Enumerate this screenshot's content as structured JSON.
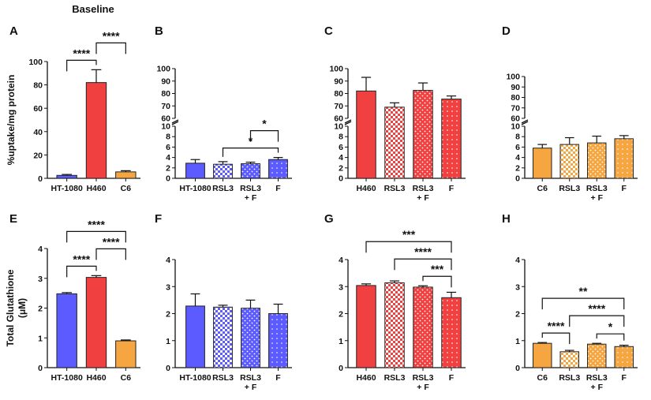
{
  "figure_title": "Baseline",
  "chart_data": [
    {
      "id": "A",
      "type": "bar",
      "panel_label": "A",
      "title": "Baseline",
      "ylabel": "%uptake/mg protein",
      "categories": [
        "HT-1080",
        "H460",
        "C6"
      ],
      "values": [
        2.5,
        82,
        5.5
      ],
      "errors": [
        0.8,
        11,
        1
      ],
      "colors": [
        "#5b5bff",
        "#f04040",
        "#f5a640"
      ],
      "patterns": [
        "solid",
        "solid",
        "solid"
      ],
      "ylim": [
        0,
        100
      ],
      "yticks": [
        0,
        20,
        40,
        60,
        80,
        100
      ],
      "significance": [
        {
          "from": 0,
          "to": 1,
          "label": "****"
        },
        {
          "from": 1,
          "to": 2,
          "label": "****"
        }
      ]
    },
    {
      "id": "B",
      "type": "bar",
      "panel_label": "B",
      "broken_axis": true,
      "categories": [
        "HT-1080",
        "RSL3",
        "RSL3\n+ F",
        "F"
      ],
      "values": [
        2.9,
        2.7,
        2.8,
        3.6
      ],
      "errors": [
        0.7,
        0.5,
        0.3,
        0.4
      ],
      "colors": [
        "#5b5bff",
        "#5b5bff",
        "#5b5bff",
        "#5b5bff"
      ],
      "patterns": [
        "solid",
        "check",
        "dots",
        "dense-dots"
      ],
      "ylim_low": [
        0,
        10
      ],
      "yticks_low": [
        0,
        2,
        4,
        6,
        8,
        10
      ],
      "ylim_high": [
        60,
        100
      ],
      "yticks_high": [
        60,
        70,
        80,
        90,
        100
      ],
      "significance": [
        {
          "from": 1,
          "to": 3,
          "label": "*"
        },
        {
          "from": 2,
          "to": 3,
          "label": "*"
        }
      ]
    },
    {
      "id": "C",
      "type": "bar",
      "panel_label": "C",
      "broken_axis": true,
      "categories": [
        "H460",
        "RSL3",
        "RSL3\n+ F",
        "F"
      ],
      "values": [
        82,
        69,
        82.5,
        75.5
      ],
      "errors": [
        11,
        3.5,
        6,
        2.5
      ],
      "colors": [
        "#f04040",
        "#f04040",
        "#f04040",
        "#f04040"
      ],
      "patterns": [
        "solid",
        "check",
        "dots",
        "dense-dots"
      ],
      "ylim_low": [
        0,
        10
      ],
      "yticks_low": [
        0,
        2,
        4,
        6,
        8,
        10
      ],
      "ylim_high": [
        60,
        100
      ],
      "yticks_high": [
        60,
        70,
        80,
        90,
        100
      ],
      "significance": []
    },
    {
      "id": "D",
      "type": "bar",
      "panel_label": "D",
      "broken_axis": true,
      "categories": [
        "C6",
        "RSL3",
        "RSL3\n+ F",
        "F"
      ],
      "values": [
        5.8,
        6.5,
        6.8,
        7.6
      ],
      "errors": [
        0.7,
        1.3,
        1.3,
        0.6
      ],
      "colors": [
        "#f5a640",
        "#f5a640",
        "#f5a640",
        "#f5a640"
      ],
      "patterns": [
        "solid",
        "check",
        "dots",
        "dense-dots"
      ],
      "ylim_low": [
        0,
        10
      ],
      "yticks_low": [
        0,
        2,
        4,
        6,
        8,
        10
      ],
      "ylim_high": [
        60,
        100
      ],
      "yticks_high": [
        60,
        70,
        80,
        90,
        100
      ],
      "significance": []
    },
    {
      "id": "E",
      "type": "bar",
      "panel_label": "E",
      "ylabel": "Total Glutathione\n(μM)",
      "categories": [
        "HT-1080",
        "H460",
        "C6"
      ],
      "values": [
        2.48,
        3.03,
        0.9
      ],
      "errors": [
        0.04,
        0.06,
        0.03
      ],
      "colors": [
        "#5b5bff",
        "#f04040",
        "#f5a640"
      ],
      "patterns": [
        "solid",
        "solid",
        "solid"
      ],
      "ylim": [
        0,
        4
      ],
      "yticks": [
        0,
        1,
        2,
        3,
        4
      ],
      "significance": [
        {
          "from": 0,
          "to": 1,
          "label": "****"
        },
        {
          "from": 1,
          "to": 2,
          "label": "****"
        },
        {
          "from": 0,
          "to": 2,
          "label": "****"
        }
      ]
    },
    {
      "id": "F",
      "type": "bar",
      "panel_label": "F",
      "categories": [
        "HT-1080",
        "RSL3",
        "RSL3\n+ F",
        "F"
      ],
      "values": [
        2.28,
        2.24,
        2.2,
        2.0
      ],
      "errors": [
        0.45,
        0.07,
        0.3,
        0.35
      ],
      "colors": [
        "#5b5bff",
        "#5b5bff",
        "#5b5bff",
        "#5b5bff"
      ],
      "patterns": [
        "solid",
        "check",
        "dots",
        "dense-dots"
      ],
      "ylim": [
        0,
        4
      ],
      "yticks": [
        0,
        1,
        2,
        3,
        4
      ],
      "significance": []
    },
    {
      "id": "G",
      "type": "bar",
      "panel_label": "G",
      "categories": [
        "H460",
        "RSL3",
        "RSL3\n+ F",
        "F"
      ],
      "values": [
        3.04,
        3.14,
        2.98,
        2.59
      ],
      "errors": [
        0.06,
        0.07,
        0.05,
        0.2
      ],
      "colors": [
        "#f04040",
        "#f04040",
        "#f04040",
        "#f04040"
      ],
      "patterns": [
        "solid",
        "check",
        "dots",
        "dense-dots"
      ],
      "ylim": [
        0,
        4
      ],
      "yticks": [
        0,
        1,
        2,
        3,
        4
      ],
      "significance": [
        {
          "from": 2,
          "to": 3,
          "label": "***"
        },
        {
          "from": 1,
          "to": 3,
          "label": "****"
        },
        {
          "from": 0,
          "to": 3,
          "label": "***"
        }
      ]
    },
    {
      "id": "H",
      "type": "bar",
      "panel_label": "H",
      "categories": [
        "C6",
        "RSL3",
        "RSL3\n+ F",
        "F"
      ],
      "values": [
        0.9,
        0.59,
        0.87,
        0.78
      ],
      "errors": [
        0.03,
        0.05,
        0.03,
        0.05
      ],
      "colors": [
        "#f5a640",
        "#f5a640",
        "#f5a640",
        "#f5a640"
      ],
      "patterns": [
        "solid",
        "check",
        "dots",
        "dense-dots"
      ],
      "ylim": [
        0,
        4
      ],
      "yticks": [
        0,
        1,
        2,
        3,
        4
      ],
      "significance": [
        {
          "from": 0,
          "to": 1,
          "label": "****"
        },
        {
          "from": 2,
          "to": 3,
          "label": "*"
        },
        {
          "from": 1,
          "to": 3,
          "label": "****"
        },
        {
          "from": 0,
          "to": 3,
          "label": "**"
        }
      ]
    }
  ]
}
